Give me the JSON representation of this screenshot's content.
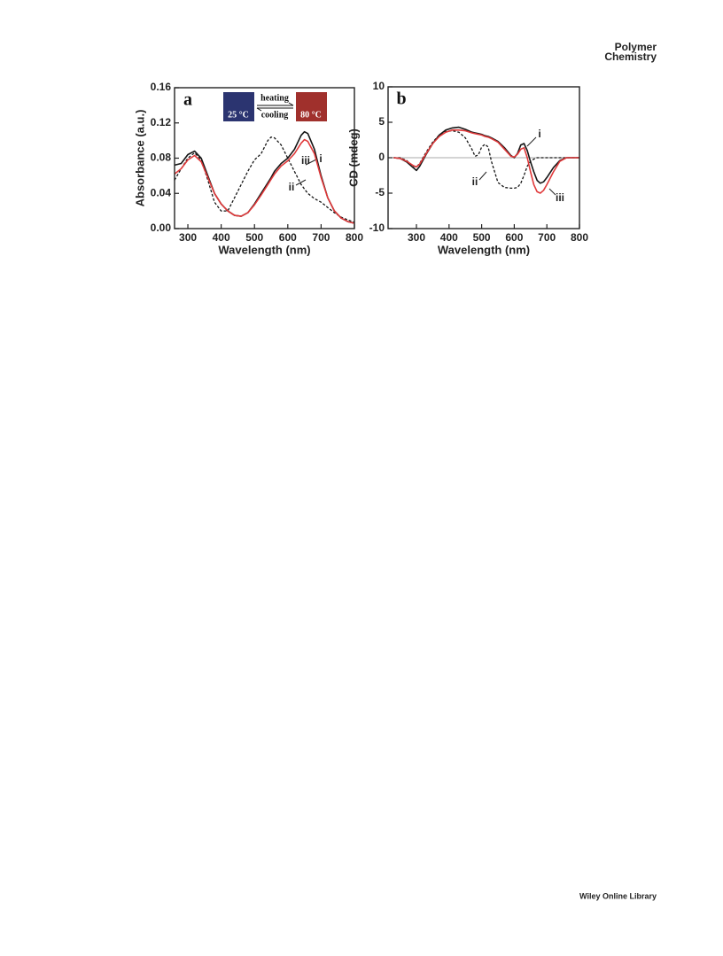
{
  "header": {
    "journal": [
      "Polymer",
      "Chemistry"
    ]
  },
  "footer": "Wiley Online Library",
  "chart_data": [
    {
      "type": "line",
      "panel": "a",
      "xlabel": "Wavelength (nm)",
      "ylabel": "Absorbance (a.u.)",
      "xlim": [
        260,
        800
      ],
      "ylim": [
        0,
        0.16
      ],
      "xticks": [
        300,
        400,
        500,
        600,
        700,
        800
      ],
      "yticks": [
        {
          "value": 0,
          "label": "0.00"
        },
        {
          "value": 0.04,
          "label": "0.04"
        },
        {
          "value": 0.08,
          "label": "0.08"
        },
        {
          "value": 0.12,
          "label": "0.12"
        },
        {
          "value": 0.16,
          "label": "0.16"
        }
      ],
      "inset": {
        "heating": "heating",
        "cooling": "cooling",
        "low": "25 °C",
        "high": "80 °C"
      },
      "x": [
        260,
        280,
        300,
        320,
        340,
        360,
        380,
        400,
        420,
        440,
        460,
        480,
        500,
        520,
        540,
        550,
        560,
        580,
        600,
        620,
        640,
        650,
        660,
        680,
        700,
        720,
        740,
        760,
        780,
        800
      ],
      "series": [
        {
          "name": "i",
          "color": "#151515",
          "dashed": false,
          "values": [
            0.072,
            0.074,
            0.084,
            0.088,
            0.08,
            0.06,
            0.04,
            0.028,
            0.02,
            0.015,
            0.014,
            0.018,
            0.028,
            0.04,
            0.052,
            0.058,
            0.065,
            0.074,
            0.08,
            0.09,
            0.106,
            0.11,
            0.108,
            0.09,
            0.06,
            0.035,
            0.02,
            0.012,
            0.008,
            0.006
          ]
        },
        {
          "name": "ii",
          "color": "#151515",
          "dashed": true,
          "values": [
            0.055,
            0.068,
            0.08,
            0.086,
            0.078,
            0.055,
            0.03,
            0.02,
            0.02,
            0.035,
            0.05,
            0.065,
            0.078,
            0.085,
            0.1,
            0.104,
            0.103,
            0.095,
            0.08,
            0.065,
            0.05,
            0.045,
            0.04,
            0.034,
            0.03,
            0.024,
            0.018,
            0.013,
            0.01,
            0.007
          ]
        },
        {
          "name": "iii",
          "color": "#e0393a",
          "dashed": false,
          "values": [
            0.062,
            0.068,
            0.078,
            0.083,
            0.076,
            0.058,
            0.04,
            0.028,
            0.02,
            0.015,
            0.014,
            0.018,
            0.027,
            0.038,
            0.05,
            0.056,
            0.062,
            0.071,
            0.077,
            0.085,
            0.097,
            0.101,
            0.099,
            0.085,
            0.058,
            0.035,
            0.02,
            0.012,
            0.008,
            0.006
          ]
        }
      ]
    },
    {
      "type": "line",
      "panel": "b",
      "xlabel": "Wavelength (nm)",
      "ylabel": "CD (mdeg)",
      "xlim": [
        213,
        800
      ],
      "ylim": [
        -10,
        10
      ],
      "xticks": [
        300,
        400,
        500,
        600,
        700,
        800
      ],
      "yticks": [
        -10,
        -5,
        0,
        5,
        10
      ],
      "x": [
        230,
        250,
        270,
        290,
        300,
        310,
        330,
        350,
        370,
        390,
        410,
        430,
        450,
        470,
        480,
        490,
        500,
        510,
        520,
        530,
        550,
        570,
        590,
        600,
        610,
        620,
        630,
        640,
        650,
        660,
        670,
        680,
        690,
        700,
        720,
        740,
        760,
        780,
        800
      ],
      "series": [
        {
          "name": "i",
          "color": "#151515",
          "dashed": false,
          "values": [
            0,
            -0.1,
            -0.6,
            -1.4,
            -1.8,
            -1.2,
            0.5,
            2,
            3.2,
            3.9,
            4.2,
            4.3,
            4,
            3.6,
            3.5,
            3.4,
            3.3,
            3.1,
            3,
            2.8,
            2.3,
            1.4,
            0.3,
            0,
            0.6,
            1.8,
            2,
            1,
            -0.6,
            -2,
            -3.2,
            -3.6,
            -3.4,
            -2.8,
            -1.4,
            -0.4,
            0,
            0,
            0
          ]
        },
        {
          "name": "ii",
          "color": "#151515",
          "dashed": true,
          "values": [
            0,
            0,
            -0.4,
            -1.2,
            -1.3,
            -0.8,
            0.8,
            2.2,
            3.2,
            3.7,
            3.8,
            3.6,
            2.8,
            1.2,
            0.2,
            0.4,
            1.5,
            1.9,
            1.5,
            -0.5,
            -3.5,
            -4.2,
            -4.3,
            -4.3,
            -4.2,
            -3.6,
            -2.5,
            -1.2,
            -0.5,
            -0.2,
            0,
            0,
            0,
            0,
            0,
            0,
            0,
            0,
            0
          ]
        },
        {
          "name": "iii",
          "color": "#e0393a",
          "dashed": false,
          "values": [
            0,
            -0.1,
            -0.5,
            -1.1,
            -1.3,
            -0.9,
            0.6,
            2,
            3,
            3.6,
            3.9,
            3.9,
            3.8,
            3.5,
            3.4,
            3.3,
            3.2,
            3,
            2.9,
            2.7,
            2.2,
            1.2,
            0.2,
            0.1,
            0.5,
            1.2,
            1.4,
            0,
            -2,
            -3.8,
            -4.8,
            -5,
            -4.6,
            -3.8,
            -2,
            -0.5,
            0,
            0,
            0
          ]
        }
      ]
    }
  ]
}
